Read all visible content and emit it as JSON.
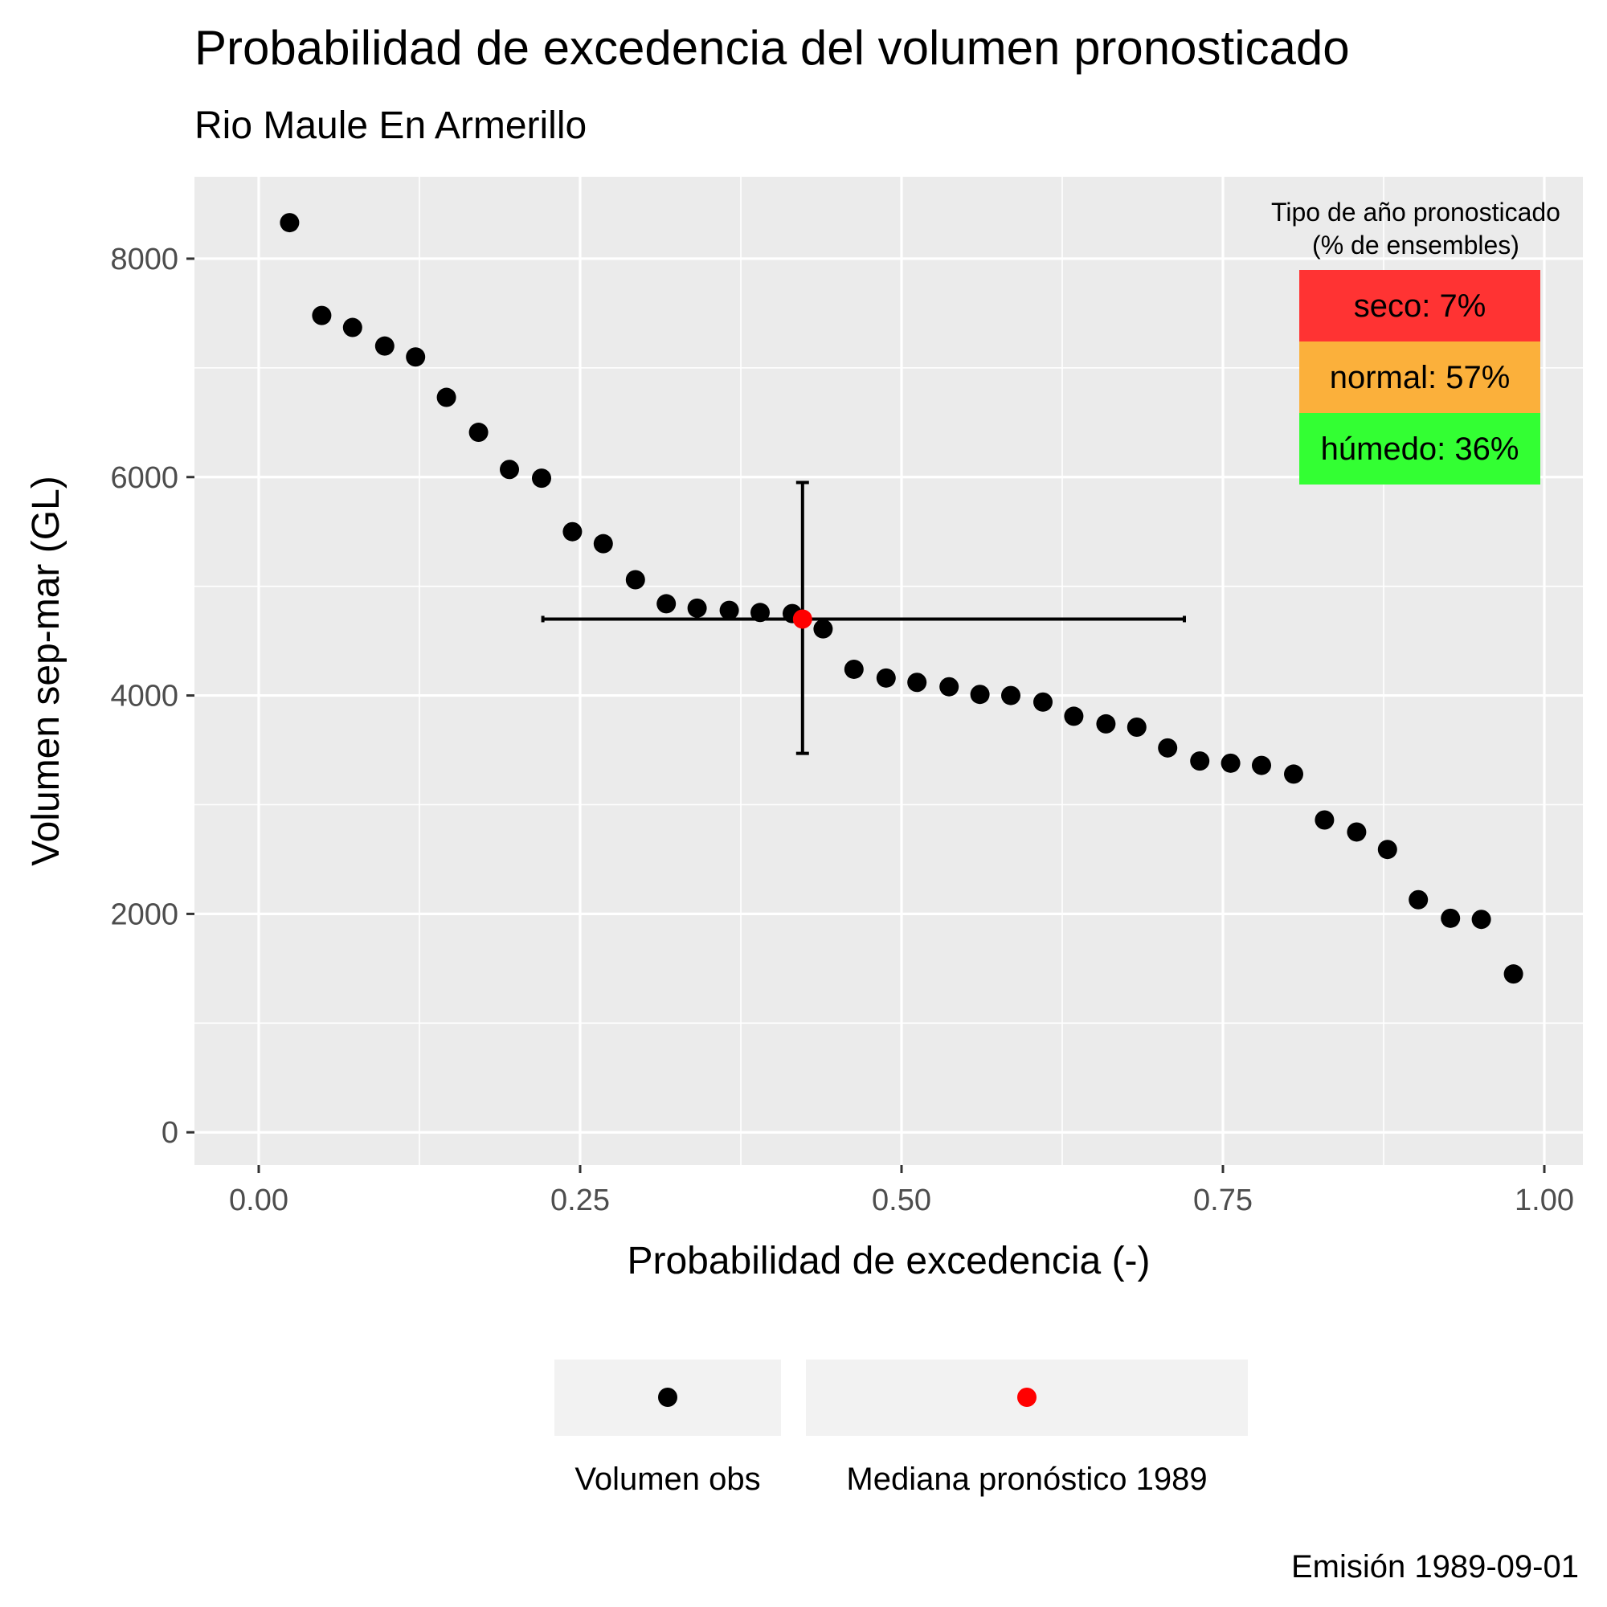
{
  "chart_data": {
    "type": "scatter",
    "title": "Probabilidad de excedencia del volumen pronosticado",
    "subtitle": "Rio Maule En Armerillo",
    "xlabel": "Probabilidad de excedencia (-)",
    "ylabel": "Volumen sep-mar (GL)",
    "caption": "Emisión 1989-09-01",
    "xlim": [
      -0.05,
      1.03
    ],
    "ylim": [
      -300,
      8750
    ],
    "x_ticks": [
      0,
      0.25,
      0.5,
      0.75,
      1
    ],
    "x_tick_labels": [
      "0.00",
      "0.25",
      "0.50",
      "0.75",
      "1.00"
    ],
    "y_ticks": [
      0,
      2000,
      4000,
      6000,
      8000
    ],
    "y_tick_labels": [
      "0",
      "2000",
      "4000",
      "6000",
      "8000"
    ],
    "grid": true,
    "series": [
      {
        "name": "Volumen obs",
        "color": "#000000",
        "points": [
          [
            0.024,
            8330
          ],
          [
            0.049,
            7480
          ],
          [
            0.073,
            7370
          ],
          [
            0.098,
            7200
          ],
          [
            0.122,
            7100
          ],
          [
            0.146,
            6730
          ],
          [
            0.171,
            6410
          ],
          [
            0.195,
            6070
          ],
          [
            0.22,
            5990
          ],
          [
            0.244,
            5500
          ],
          [
            0.268,
            5390
          ],
          [
            0.293,
            5060
          ],
          [
            0.317,
            4840
          ],
          [
            0.341,
            4800
          ],
          [
            0.366,
            4780
          ],
          [
            0.39,
            4760
          ],
          [
            0.415,
            4750
          ],
          [
            0.439,
            4610
          ],
          [
            0.463,
            4240
          ],
          [
            0.488,
            4160
          ],
          [
            0.512,
            4120
          ],
          [
            0.537,
            4080
          ],
          [
            0.561,
            4010
          ],
          [
            0.585,
            4000
          ],
          [
            0.61,
            3940
          ],
          [
            0.634,
            3810
          ],
          [
            0.659,
            3740
          ],
          [
            0.683,
            3710
          ],
          [
            0.707,
            3520
          ],
          [
            0.732,
            3400
          ],
          [
            0.756,
            3380
          ],
          [
            0.78,
            3360
          ],
          [
            0.805,
            3280
          ],
          [
            0.829,
            2860
          ],
          [
            0.854,
            2750
          ],
          [
            0.878,
            2590
          ],
          [
            0.902,
            2130
          ],
          [
            0.927,
            1960
          ],
          [
            0.951,
            1950
          ],
          [
            0.976,
            1450
          ]
        ]
      },
      {
        "name": "Mediana pronóstico 1989",
        "color": "#ff0000",
        "points": [
          [
            0.423,
            4700
          ]
        ],
        "error_x": [
          0.221,
          0.72
        ],
        "error_y": [
          3470,
          5950
        ]
      }
    ],
    "legend_position": "bottom",
    "inset": {
      "title_line1": "Tipo de año pronosticado",
      "title_line2": "(% de ensembles)",
      "categories": [
        {
          "label": "seco: 7%",
          "color": "#ff3333"
        },
        {
          "label": "normal: 57%",
          "color": "#fbb03b"
        },
        {
          "label": "húmedo: 36%",
          "color": "#33ff33"
        }
      ]
    }
  }
}
